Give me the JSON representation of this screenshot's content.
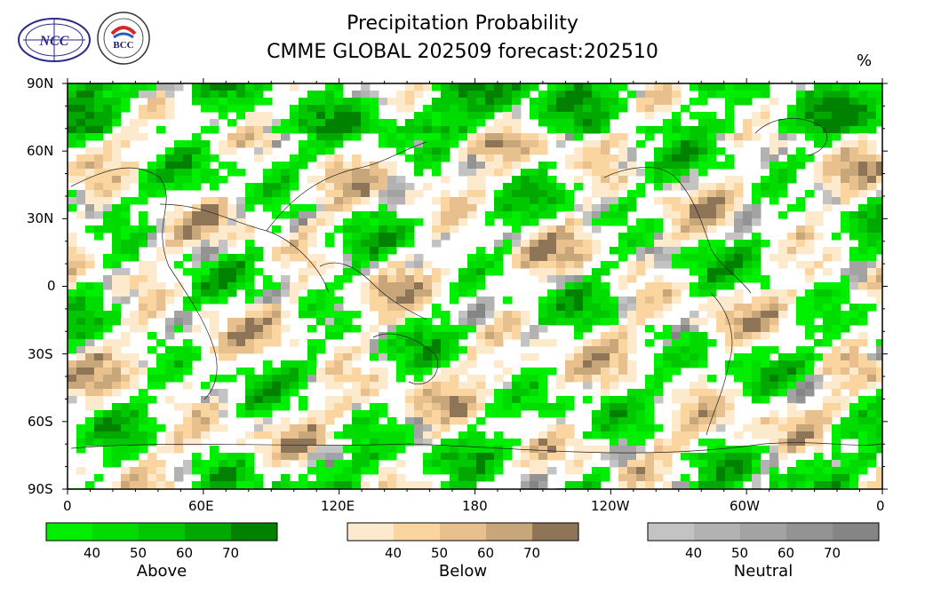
{
  "header": {
    "title_line1": "Precipitation Probability",
    "title_line2": "CMME GLOBAL 202509 forecast:202510",
    "unit": "%",
    "logos": [
      {
        "name": "ncc-logo",
        "text": "NCC"
      },
      {
        "name": "bcc-logo",
        "text": "BCC"
      }
    ]
  },
  "map": {
    "projection": "cylindrical equidistant, centered 180",
    "lat_ticks": [
      "90N",
      "60N",
      "30N",
      "0",
      "30S",
      "60S",
      "90S"
    ],
    "lon_ticks": [
      "0",
      "60E",
      "120E",
      "180",
      "120W",
      "60W",
      "0"
    ],
    "grid": false
  },
  "legend": {
    "groups": [
      {
        "name": "above",
        "title": "Above",
        "ticks": [
          "40",
          "50",
          "60",
          "70"
        ],
        "colors": [
          "#00ee00",
          "#00dc00",
          "#00c800",
          "#00a800",
          "#008200"
        ]
      },
      {
        "name": "below",
        "title": "Below",
        "ticks": [
          "40",
          "50",
          "60",
          "70"
        ],
        "colors": [
          "#fde9cc",
          "#fbd59f",
          "#e8c08e",
          "#c7a67a",
          "#8e7558"
        ]
      },
      {
        "name": "neutral",
        "title": "Neutral",
        "ticks": [
          "40",
          "50",
          "60",
          "70"
        ],
        "colors": [
          "#c3c3c3",
          "#b2b2b2",
          "#a3a3a3",
          "#939393",
          "#858585"
        ]
      }
    ]
  }
}
